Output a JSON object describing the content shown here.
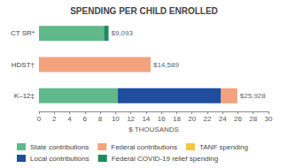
{
  "chart_data": {
    "type": "bar",
    "title": "SPENDING PER CHILD ENROLLED",
    "orientation": "horizontal",
    "stacked": true,
    "categories": [
      "CT SR*",
      "HDST†",
      "K–12‡"
    ],
    "series": [
      {
        "name": "State contributions",
        "color": "#5fb98b",
        "values": [
          8.493,
          null,
          10.3
        ]
      },
      {
        "name": "Local contributions",
        "color": "#1f4e9e",
        "values": [
          null,
          null,
          13.5
        ]
      },
      {
        "name": "Federal contributions",
        "color": "#f2a27d",
        "values": [
          null,
          14.589,
          2.128
        ]
      },
      {
        "name": "TANF spending",
        "color": "#f4c542",
        "values": [
          null,
          null,
          null
        ]
      },
      {
        "name": "Federal COVID-19 relief spending",
        "color": "#1f8a5c",
        "values": [
          0.6,
          null,
          null
        ]
      }
    ],
    "annotations": [
      {
        "category": "CT SR*",
        "value": 9.093,
        "label": "$9,093"
      },
      {
        "category": "HDST†",
        "value": 14.589,
        "label": "$14,589"
      },
      {
        "category": "K–12‡",
        "value": 25.928,
        "label": "$25,928"
      }
    ],
    "xlabel": "$ THOUSANDS",
    "xlim": [
      0,
      30
    ],
    "xticks": [
      0,
      2,
      4,
      6,
      8,
      10,
      12,
      14,
      16,
      18,
      20,
      22,
      24,
      26,
      28,
      30
    ],
    "grid": false,
    "legend": "bottom"
  }
}
